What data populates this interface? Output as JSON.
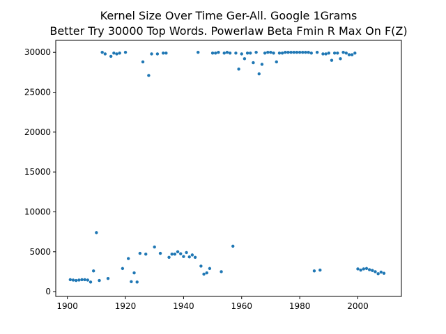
{
  "chart_data": {
    "type": "scatter",
    "title": "Kernel Size Over Time Ger-All. Google 1Grams",
    "subtitle": "Better Try 30000 Top Words. Powerlaw Beta Fmin R Max On F(Z)",
    "xlabel": "",
    "ylabel": "",
    "xlim": [
      1896,
      2015
    ],
    "ylim": [
      -600,
      31500
    ],
    "xticks": [
      1900,
      1920,
      1940,
      1960,
      1980,
      2000
    ],
    "yticks": [
      0,
      5000,
      10000,
      15000,
      20000,
      25000,
      30000
    ],
    "grid": false,
    "color": "#1f77b4",
    "series": [
      {
        "x": [
          1901,
          1902,
          1903,
          1904,
          1905,
          1906,
          1907,
          1908,
          1909,
          1910,
          1911,
          1912,
          1913,
          1914,
          1915,
          1916,
          1917,
          1918,
          1919,
          1920,
          1921,
          1922,
          1923,
          1924,
          1925,
          1926,
          1927,
          1928,
          1929,
          1930,
          1931,
          1932,
          1933,
          1934,
          1935,
          1936,
          1937,
          1938,
          1939,
          1940,
          1941,
          1942,
          1943,
          1944,
          1945,
          1946,
          1947,
          1948,
          1949,
          1950,
          1951,
          1952,
          1953,
          1954,
          1955,
          1956,
          1957,
          1958,
          1959,
          1960,
          1961,
          1962,
          1963,
          1964,
          1965,
          1966,
          1967,
          1968,
          1969,
          1970,
          1971,
          1972,
          1973,
          1974,
          1975,
          1976,
          1977,
          1978,
          1979,
          1980,
          1981,
          1982,
          1983,
          1984,
          1985,
          1986,
          1987,
          1988,
          1989,
          1990,
          1991,
          1992,
          1993,
          1994,
          1995,
          1996,
          1997,
          1998,
          1999,
          2000,
          2001,
          2002,
          2003,
          2004,
          2005,
          2006,
          2007,
          2008,
          2009
        ],
        "y": [
          1500,
          1450,
          1400,
          1450,
          1500,
          1500,
          1450,
          1200,
          2600,
          7400,
          1400,
          30000,
          29800,
          1650,
          29500,
          29900,
          29800,
          29900,
          2900,
          30000,
          4150,
          1250,
          2350,
          1200,
          4800,
          28800,
          4700,
          27100,
          29800,
          5600,
          29800,
          4800,
          29900,
          29900,
          4300,
          4700,
          4700,
          5000,
          4750,
          4400,
          4900,
          4350,
          4600,
          4300,
          30000,
          3200,
          2200,
          2350,
          2900,
          29900,
          29900,
          30000,
          2500,
          29900,
          30000,
          29900,
          5700,
          29900,
          27900,
          29800,
          29200,
          29900,
          29900,
          28700,
          30000,
          27300,
          28500,
          29900,
          30000,
          30000,
          29900,
          28800,
          29900,
          29900,
          30000,
          30000,
          30000,
          30000,
          30000,
          30000,
          30000,
          30000,
          30000,
          29900,
          2600,
          30000,
          2700,
          29800,
          29800,
          29900,
          29000,
          29900,
          29900,
          29200,
          30000,
          29900,
          29700,
          29700,
          29900,
          2850,
          2700,
          2850,
          2900,
          2750,
          2650,
          2500,
          2250,
          2450,
          2300
        ]
      }
    ]
  }
}
